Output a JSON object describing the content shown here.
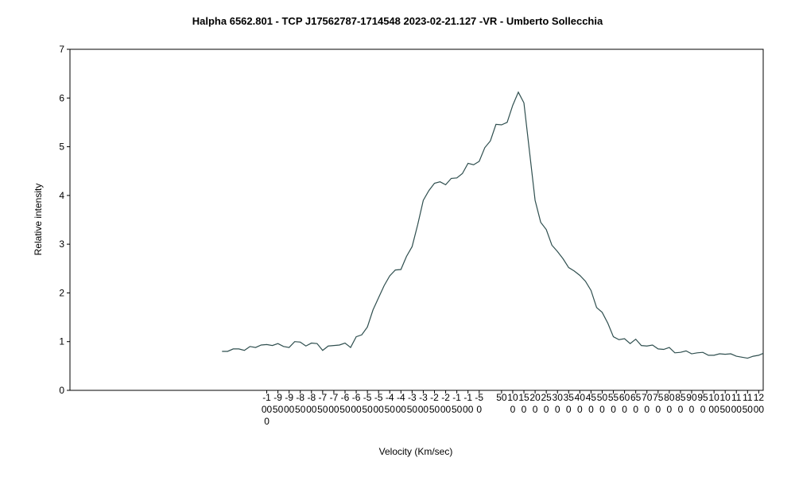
{
  "chart_data": {
    "type": "line",
    "title": "Halpha 6562.801 - TCP J17562787-1714548   2023-02-21.127 -VR -  Umberto Sollecchia",
    "xlabel": "Velocity (Km/sec)",
    "ylabel": "Relative intensity",
    "ylim": [
      0,
      7
    ],
    "yticks": [
      0,
      1,
      2,
      3,
      4,
      5,
      6,
      7
    ],
    "xlim": [
      -1880,
      1220
    ],
    "xticks": [
      -1000,
      -950,
      -900,
      -850,
      -800,
      -750,
      -700,
      -650,
      -600,
      -550,
      -500,
      -450,
      -400,
      -350,
      -300,
      -250,
      -200,
      -150,
      -100,
      -50,
      50,
      100,
      150,
      200,
      250,
      300,
      350,
      400,
      450,
      500,
      550,
      600,
      650,
      700,
      750,
      800,
      850,
      900,
      950,
      1000,
      1050,
      1100,
      1150,
      1200
    ],
    "xtick_labels": [
      "-1000",
      "-950",
      "-900",
      "-850",
      "-800",
      "-750",
      "-700",
      "-650",
      "-600",
      "-550",
      "-500",
      "-450",
      "-400",
      "-350",
      "-300",
      "-250",
      "-200",
      "-150",
      "-100",
      "-50",
      "50",
      "100",
      "150",
      "200",
      "250",
      "300",
      "350",
      "400",
      "450",
      "500",
      "550",
      "600",
      "650",
      "700",
      "750",
      "800",
      "850",
      "900",
      "950",
      "1000",
      "1050",
      "1100",
      "1150",
      "1200"
    ],
    "grid": false,
    "line_color": "#2f4f4f",
    "series": [
      {
        "x": [
          -1200,
          -1175,
          -1150,
          -1125,
          -1100,
          -1075,
          -1050,
          -1025,
          -1000,
          -975,
          -950,
          -925,
          -900,
          -875,
          -850,
          -825,
          -800,
          -775,
          -750,
          -725,
          -700,
          -675,
          -650,
          -625,
          -600,
          -575,
          -550,
          -525,
          -500,
          -475,
          -450,
          -425,
          -400,
          -375,
          -350,
          -325,
          -300,
          -275,
          -250,
          -225,
          -200,
          -175,
          -150,
          -125,
          -100,
          -75,
          -50,
          -25,
          0,
          25,
          50,
          75,
          100,
          125,
          150,
          175,
          200,
          225,
          250,
          275,
          300,
          325,
          350,
          375,
          400,
          425,
          450,
          475,
          500,
          525,
          550,
          575,
          600,
          625,
          650,
          675,
          700,
          725,
          750,
          775,
          800,
          825,
          850,
          875,
          900,
          925,
          950,
          975,
          1000,
          1025,
          1050,
          1075,
          1100,
          1125,
          1150,
          1175,
          1200,
          1220
        ],
        "values": [
          0.8,
          0.8,
          0.85,
          0.85,
          0.82,
          0.9,
          0.88,
          0.93,
          0.94,
          0.92,
          0.96,
          0.9,
          0.88,
          1.0,
          0.99,
          0.91,
          0.97,
          0.96,
          0.82,
          0.91,
          0.92,
          0.93,
          0.97,
          0.88,
          1.1,
          1.14,
          1.3,
          1.65,
          1.9,
          2.15,
          2.35,
          2.47,
          2.48,
          2.75,
          2.95,
          3.4,
          3.9,
          4.1,
          4.25,
          4.28,
          4.22,
          4.35,
          4.36,
          4.45,
          4.66,
          4.63,
          4.7,
          4.98,
          5.12,
          5.46,
          5.45,
          5.5,
          5.85,
          6.12,
          5.9,
          4.9,
          3.9,
          3.45,
          3.3,
          2.98,
          2.85,
          2.7,
          2.52,
          2.45,
          2.36,
          2.24,
          2.05,
          1.7,
          1.6,
          1.38,
          1.1,
          1.04,
          1.06,
          0.96,
          1.05,
          0.92,
          0.91,
          0.93,
          0.85,
          0.84,
          0.88,
          0.77,
          0.78,
          0.81,
          0.75,
          0.77,
          0.78,
          0.72,
          0.72,
          0.75,
          0.74,
          0.75,
          0.7,
          0.68,
          0.66,
          0.7,
          0.72,
          0.76
        ]
      }
    ]
  }
}
